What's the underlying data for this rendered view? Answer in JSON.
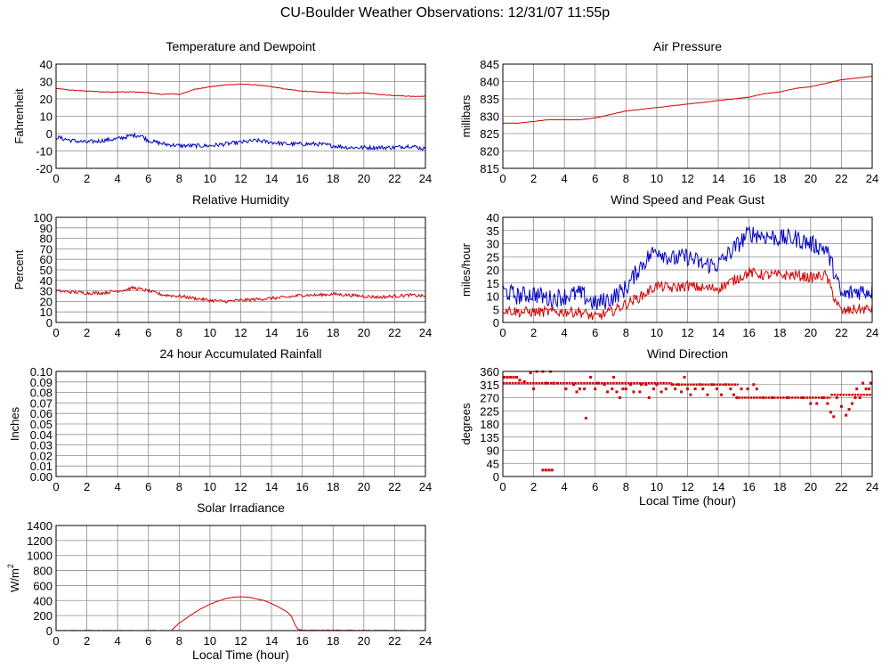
{
  "page": {
    "title": "CU-Boulder Weather Observations: 12/31/07 11:55p"
  },
  "colors": {
    "red": "#d40000",
    "blue": "#0000c8",
    "grid": "#8c8c8c",
    "frame": "#000000"
  },
  "chart_data": [
    {
      "id": "temp",
      "type": "line",
      "title": "Temperature and Dewpoint",
      "ylabel": "Fahrenheit",
      "xlabel": "",
      "xlim": [
        0,
        24
      ],
      "ylim": [
        -20,
        40
      ],
      "xticks": [
        0,
        2,
        4,
        6,
        8,
        10,
        12,
        14,
        16,
        18,
        20,
        22,
        24
      ],
      "yticks": [
        -20,
        -10,
        0,
        10,
        20,
        30,
        40
      ],
      "ytick_labels": [
        "-20",
        "-10",
        "0",
        "10",
        "20",
        "30",
        "40"
      ],
      "grid": true,
      "series": [
        {
          "color": "red",
          "noise": 0.2,
          "x": [
            0,
            1,
            2,
            3,
            4,
            5,
            6,
            7,
            7.5,
            8,
            9,
            10,
            11,
            12,
            13,
            14,
            15,
            16,
            17,
            18,
            19,
            20,
            21,
            22,
            23,
            24
          ],
          "y": [
            26,
            25,
            24.5,
            24,
            24,
            24,
            23.5,
            22.5,
            23,
            22.5,
            25.5,
            27,
            28,
            28.5,
            28,
            27,
            25.5,
            24.5,
            24,
            23.5,
            23,
            23.5,
            22.5,
            22,
            21.5,
            21.5
          ]
        },
        {
          "color": "blue",
          "noise": 1.2,
          "x": [
            0,
            1,
            2,
            3,
            4,
            5,
            5.5,
            6,
            7,
            8,
            9,
            10,
            11,
            12,
            13,
            14,
            15,
            16,
            17,
            18,
            19,
            20,
            21,
            22,
            23,
            24
          ],
          "y": [
            -2,
            -4,
            -5,
            -4,
            -3,
            -1,
            -1,
            -4,
            -6,
            -7,
            -7,
            -7,
            -6,
            -5,
            -4,
            -5,
            -6,
            -6,
            -6,
            -7,
            -8,
            -8,
            -8,
            -8,
            -7,
            -9
          ]
        }
      ]
    },
    {
      "id": "pressure",
      "type": "line",
      "title": "Air Pressure",
      "ylabel": "millibars",
      "xlabel": "",
      "xlim": [
        0,
        24
      ],
      "ylim": [
        815,
        845
      ],
      "xticks": [
        0,
        2,
        4,
        6,
        8,
        10,
        12,
        14,
        16,
        18,
        20,
        22,
        24
      ],
      "yticks": [
        815,
        820,
        825,
        830,
        835,
        840,
        845
      ],
      "ytick_labels": [
        "815",
        "820",
        "825",
        "830",
        "835",
        "840",
        "845"
      ],
      "grid": true,
      "series": [
        {
          "color": "red",
          "noise": 0.05,
          "x": [
            0,
            1,
            2,
            3,
            4,
            5,
            6,
            7,
            8,
            9,
            10,
            11,
            12,
            13,
            14,
            15,
            16,
            17,
            18,
            19,
            20,
            21,
            22,
            23,
            24
          ],
          "y": [
            828,
            828,
            828.5,
            829,
            829,
            829,
            829.5,
            830.5,
            831.5,
            832,
            832.5,
            833,
            833.5,
            834,
            834.5,
            835,
            835.5,
            836.5,
            837,
            838,
            838.5,
            839.5,
            840.5,
            841,
            841.5
          ]
        }
      ]
    },
    {
      "id": "humidity",
      "type": "line",
      "title": "Relative Humidity",
      "ylabel": "Percent",
      "xlabel": "",
      "xlim": [
        0,
        24
      ],
      "ylim": [
        0,
        100
      ],
      "xticks": [
        0,
        2,
        4,
        6,
        8,
        10,
        12,
        14,
        16,
        18,
        20,
        22,
        24
      ],
      "yticks": [
        0,
        10,
        20,
        30,
        40,
        50,
        60,
        70,
        80,
        90,
        100
      ],
      "ytick_labels": [
        "0",
        "10",
        "20",
        "30",
        "40",
        "50",
        "60",
        "70",
        "80",
        "90",
        "100"
      ],
      "grid": true,
      "series": [
        {
          "color": "red",
          "noise": 1.5,
          "x": [
            0,
            1,
            2,
            3,
            4,
            4.5,
            5,
            6,
            7,
            8,
            9,
            10,
            11,
            12,
            13,
            14,
            15,
            16,
            17,
            18,
            19,
            20,
            21,
            22,
            23,
            24
          ],
          "y": [
            30,
            29,
            28,
            28,
            30,
            31,
            33,
            30,
            26,
            25,
            23,
            21,
            20,
            21,
            22,
            23,
            24,
            26,
            26,
            27,
            26,
            25,
            24,
            25,
            26,
            25
          ]
        }
      ]
    },
    {
      "id": "wind",
      "type": "line",
      "title": "Wind Speed and Peak Gust",
      "ylabel": "miles/hour",
      "xlabel": "",
      "xlim": [
        0,
        24
      ],
      "ylim": [
        0,
        40
      ],
      "xticks": [
        0,
        2,
        4,
        6,
        8,
        10,
        12,
        14,
        16,
        18,
        20,
        22,
        24
      ],
      "yticks": [
        0,
        5,
        10,
        15,
        20,
        25,
        30,
        35,
        40
      ],
      "ytick_labels": [
        "0",
        "5",
        "10",
        "15",
        "20",
        "25",
        "30",
        "35",
        "40"
      ],
      "grid": true,
      "series": [
        {
          "color": "blue",
          "noise": 3.5,
          "x": [
            0,
            1,
            2,
            3,
            4,
            5,
            6,
            7,
            8,
            9,
            10,
            11,
            12,
            13,
            14,
            15,
            16,
            17,
            18,
            19,
            20,
            21,
            21.5,
            22,
            23,
            24
          ],
          "y": [
            12,
            10,
            11,
            9,
            10,
            11,
            7,
            9,
            13,
            22,
            28,
            24,
            25,
            22,
            22,
            28,
            34,
            33,
            32,
            32,
            30,
            28,
            20,
            10,
            12,
            12
          ]
        },
        {
          "color": "red",
          "noise": 2.0,
          "x": [
            0,
            1,
            2,
            3,
            4,
            5,
            6,
            7,
            8,
            9,
            10,
            11,
            12,
            13,
            14,
            15,
            16,
            17,
            18,
            19,
            20,
            21,
            21.5,
            22,
            23,
            24
          ],
          "y": [
            5,
            4,
            4,
            4,
            4,
            4,
            2,
            4,
            7,
            10,
            14,
            13,
            14,
            13,
            13,
            16,
            19,
            18,
            18,
            18,
            17,
            18,
            10,
            4,
            5,
            5
          ]
        }
      ]
    },
    {
      "id": "rain",
      "type": "line",
      "title": "24 hour Accumulated Rainfall",
      "ylabel": "Inches",
      "xlabel": "",
      "xlim": [
        0,
        24
      ],
      "ylim": [
        0,
        0.1
      ],
      "xticks": [
        0,
        2,
        4,
        6,
        8,
        10,
        12,
        14,
        16,
        18,
        20,
        22,
        24
      ],
      "yticks": [
        0,
        0.01,
        0.02,
        0.03,
        0.04,
        0.05,
        0.06,
        0.07,
        0.08,
        0.09,
        0.1
      ],
      "ytick_labels": [
        "0.00",
        "0.01",
        "0.02",
        "0.03",
        "0.04",
        "0.05",
        "0.06",
        "0.07",
        "0.08",
        "0.09",
        "0.10"
      ],
      "grid": true,
      "series": [
        {
          "color": "red",
          "noise": 0,
          "x": [
            0,
            24
          ],
          "y": [
            0,
            0
          ]
        }
      ]
    },
    {
      "id": "winddir",
      "type": "scatter",
      "title": "Wind Direction",
      "ylabel": "degrees",
      "xlabel": "Local Time (hour)",
      "xlim": [
        0,
        24
      ],
      "ylim": [
        0,
        360
      ],
      "xticks": [
        0,
        2,
        4,
        6,
        8,
        10,
        12,
        14,
        16,
        18,
        20,
        22,
        24
      ],
      "yticks": [
        0,
        45,
        90,
        135,
        180,
        225,
        270,
        315,
        360
      ],
      "ytick_labels": [
        "0",
        "45",
        "90",
        "135",
        "180",
        "225",
        "270",
        "315",
        "360"
      ],
      "grid": true,
      "series": [
        {
          "color": "red",
          "points": [
            [
              0.1,
              340
            ],
            [
              0.3,
              340
            ],
            [
              0.5,
              340
            ],
            [
              0.7,
              340
            ],
            [
              0.9,
              340
            ],
            [
              1.1,
              330
            ],
            [
              1.4,
              325
            ],
            [
              1.8,
              355
            ],
            [
              2.0,
              300
            ],
            [
              2.2,
              360
            ],
            [
              2.6,
              360
            ],
            [
              2.8,
              320
            ],
            [
              3.1,
              360
            ],
            [
              3.3,
              320
            ],
            [
              2.6,
              22
            ],
            [
              2.8,
              22
            ],
            [
              3.0,
              22
            ],
            [
              3.2,
              22
            ],
            [
              4.1,
              300
            ],
            [
              4.6,
              315
            ],
            [
              4.8,
              290
            ],
            [
              5.0,
              300
            ],
            [
              5.3,
              300
            ],
            [
              5.4,
              200
            ],
            [
              5.7,
              340
            ],
            [
              6.0,
              300
            ],
            [
              6.2,
              320
            ],
            [
              6.6,
              315
            ],
            [
              6.8,
              290
            ],
            [
              7.1,
              300
            ],
            [
              7.2,
              340
            ],
            [
              7.4,
              290
            ],
            [
              7.6,
              270
            ],
            [
              7.8,
              300
            ],
            [
              8.0,
              300
            ],
            [
              8.3,
              315
            ],
            [
              8.5,
              290
            ],
            [
              8.9,
              290
            ],
            [
              9.0,
              315
            ],
            [
              9.3,
              315
            ],
            [
              9.5,
              270
            ],
            [
              9.8,
              300
            ],
            [
              10.0,
              315
            ],
            [
              10.3,
              290
            ],
            [
              10.6,
              300
            ],
            [
              11.0,
              315
            ],
            [
              11.2,
              300
            ],
            [
              11.4,
              315
            ],
            [
              11.6,
              290
            ],
            [
              11.8,
              340
            ],
            [
              12.0,
              300
            ],
            [
              12.2,
              280
            ],
            [
              12.5,
              300
            ],
            [
              12.8,
              315
            ],
            [
              13.0,
              300
            ],
            [
              13.3,
              280
            ],
            [
              13.6,
              315
            ],
            [
              13.9,
              300
            ],
            [
              14.2,
              280
            ],
            [
              14.5,
              315
            ],
            [
              14.8,
              300
            ],
            [
              15.0,
              280
            ],
            [
              15.2,
              270
            ],
            [
              15.5,
              300
            ],
            [
              15.9,
              300
            ],
            [
              16.3,
              315
            ],
            [
              16.5,
              300
            ],
            [
              16.9,
              270
            ],
            [
              17.5,
              270
            ],
            [
              18.5,
              270
            ],
            [
              19.5,
              270
            ],
            [
              20.0,
              250
            ],
            [
              20.4,
              250
            ],
            [
              20.8,
              270
            ],
            [
              21.1,
              250
            ],
            [
              21.3,
              220
            ],
            [
              21.5,
              205
            ],
            [
              21.7,
              270
            ],
            [
              22.0,
              240
            ],
            [
              22.3,
              210
            ],
            [
              22.5,
              230
            ],
            [
              22.7,
              250
            ],
            [
              22.9,
              270
            ],
            [
              23.0,
              300
            ],
            [
              23.2,
              270
            ],
            [
              23.4,
              320
            ],
            [
              23.6,
              300
            ],
            [
              23.8,
              300
            ],
            [
              23.9,
              320
            ],
            [
              24.0,
              360
            ]
          ],
          "bands": [
            [
              0.0,
              3.5,
              320
            ],
            [
              3.5,
              11.0,
              320
            ],
            [
              11.0,
              15.3,
              315
            ],
            [
              15.3,
              21.3,
              270
            ],
            [
              21.3,
              24.0,
              280
            ]
          ]
        }
      ]
    },
    {
      "id": "solar",
      "type": "line",
      "title": "Solar Irradiance",
      "ylabel": "W/m",
      "ylabel_sup": "2",
      "xlabel": "Local Time (hour)",
      "xlim": [
        0,
        24
      ],
      "ylim": [
        0,
        1400
      ],
      "xticks": [
        0,
        2,
        4,
        6,
        8,
        10,
        12,
        14,
        16,
        18,
        20,
        22,
        24
      ],
      "yticks": [
        0,
        200,
        400,
        600,
        800,
        1000,
        1200,
        1400
      ],
      "ytick_labels": [
        "0",
        "200",
        "400",
        "600",
        "800",
        "1000",
        "1200",
        "1400"
      ],
      "grid": true,
      "series": [
        {
          "color": "red",
          "noise": 3,
          "x": [
            0,
            7.5,
            7.8,
            8,
            8.5,
            9,
            9.5,
            10,
            10.5,
            11,
            11.5,
            12,
            12.5,
            13,
            13.5,
            14,
            14.5,
            15,
            15.3,
            15.5,
            15.7,
            16,
            24
          ],
          "y": [
            0,
            0,
            60,
            100,
            170,
            240,
            300,
            350,
            390,
            425,
            445,
            450,
            445,
            425,
            400,
            360,
            310,
            250,
            190,
            90,
            20,
            5,
            0
          ]
        }
      ]
    }
  ]
}
